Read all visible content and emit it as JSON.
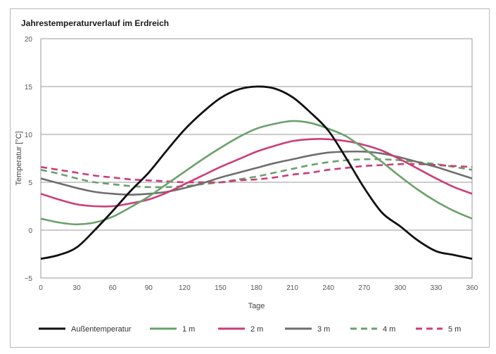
{
  "chart_data": {
    "type": "line",
    "title": "Jahrestemperaturverlauf im Erdreich",
    "xlabel": "Tage",
    "ylabel": "Temperatur [°C]",
    "xlim": [
      0,
      360
    ],
    "ylim": [
      -5,
      20
    ],
    "xticks": [
      0,
      30,
      60,
      90,
      120,
      150,
      180,
      210,
      240,
      270,
      300,
      330,
      360
    ],
    "yticks": [
      -5,
      0,
      5,
      10,
      15,
      20
    ],
    "grid": "horizontal",
    "legend_position": "bottom",
    "series": [
      {
        "name": "Außentemperatur",
        "color": "#111111",
        "dash": "solid",
        "x": [
          0,
          15,
          30,
          45,
          60,
          75,
          90,
          105,
          120,
          135,
          150,
          165,
          180,
          195,
          210,
          225,
          240,
          255,
          270,
          285,
          300,
          315,
          330,
          345,
          360
        ],
        "y": [
          -3.0,
          -2.6,
          -1.8,
          0.0,
          2.0,
          4.1,
          6.0,
          8.3,
          10.5,
          12.3,
          13.8,
          14.7,
          15.0,
          14.8,
          13.9,
          12.3,
          10.4,
          7.5,
          4.4,
          1.8,
          0.4,
          -1.1,
          -2.2,
          -2.6,
          -3.0
        ]
      },
      {
        "name": "1 m",
        "color": "#6aa16a",
        "dash": "solid",
        "x": [
          0,
          15,
          30,
          45,
          60,
          75,
          90,
          105,
          120,
          135,
          150,
          165,
          180,
          195,
          210,
          225,
          240,
          255,
          270,
          285,
          300,
          315,
          330,
          345,
          360
        ],
        "y": [
          1.2,
          0.8,
          0.6,
          0.8,
          1.4,
          2.4,
          3.5,
          4.8,
          6.1,
          7.4,
          8.6,
          9.7,
          10.6,
          11.1,
          11.4,
          11.2,
          10.6,
          9.8,
          8.5,
          7.1,
          5.6,
          4.2,
          3.0,
          2.0,
          1.2
        ]
      },
      {
        "name": "2 m",
        "color": "#cc3d78",
        "dash": "solid",
        "x": [
          0,
          15,
          30,
          45,
          60,
          75,
          90,
          105,
          120,
          135,
          150,
          165,
          180,
          195,
          210,
          225,
          240,
          255,
          270,
          285,
          300,
          315,
          330,
          345,
          360
        ],
        "y": [
          3.8,
          3.2,
          2.7,
          2.5,
          2.5,
          2.8,
          3.2,
          3.9,
          4.8,
          5.7,
          6.6,
          7.4,
          8.2,
          8.8,
          9.3,
          9.5,
          9.5,
          9.3,
          8.9,
          8.3,
          7.4,
          6.4,
          5.4,
          4.5,
          3.8
        ]
      },
      {
        "name": "3 m",
        "color": "#6e6e6e",
        "dash": "solid",
        "x": [
          0,
          15,
          30,
          45,
          60,
          75,
          90,
          105,
          120,
          135,
          150,
          165,
          180,
          195,
          210,
          225,
          240,
          255,
          270,
          285,
          300,
          315,
          330,
          345,
          360
        ],
        "y": [
          5.4,
          4.9,
          4.4,
          4.0,
          3.8,
          3.7,
          3.8,
          4.0,
          4.4,
          4.9,
          5.5,
          6.0,
          6.5,
          7.0,
          7.4,
          7.8,
          8.1,
          8.2,
          8.2,
          8.0,
          7.6,
          7.1,
          6.6,
          6.0,
          5.4
        ]
      },
      {
        "name": "4 m",
        "color": "#6aa16a",
        "dash": "dashed",
        "x": [
          0,
          15,
          30,
          45,
          60,
          75,
          90,
          105,
          120,
          135,
          150,
          165,
          180,
          195,
          210,
          225,
          240,
          255,
          270,
          285,
          300,
          315,
          330,
          345,
          360
        ],
        "y": [
          6.3,
          5.9,
          5.4,
          5.0,
          4.8,
          4.6,
          4.5,
          4.5,
          4.6,
          4.8,
          5.0,
          5.3,
          5.6,
          6.0,
          6.4,
          6.8,
          7.1,
          7.3,
          7.4,
          7.4,
          7.3,
          7.1,
          6.9,
          6.6,
          6.3
        ]
      },
      {
        "name": "5 m",
        "color": "#cc3d78",
        "dash": "dashed",
        "x": [
          0,
          15,
          30,
          45,
          60,
          75,
          90,
          105,
          120,
          135,
          150,
          165,
          180,
          195,
          210,
          225,
          240,
          255,
          270,
          285,
          300,
          315,
          330,
          345,
          360
        ],
        "y": [
          6.6,
          6.3,
          6.0,
          5.7,
          5.5,
          5.3,
          5.2,
          5.1,
          5.0,
          5.0,
          5.0,
          5.2,
          5.3,
          5.5,
          5.8,
          6.0,
          6.3,
          6.5,
          6.7,
          6.8,
          6.9,
          6.9,
          6.8,
          6.7,
          6.6
        ]
      }
    ]
  }
}
